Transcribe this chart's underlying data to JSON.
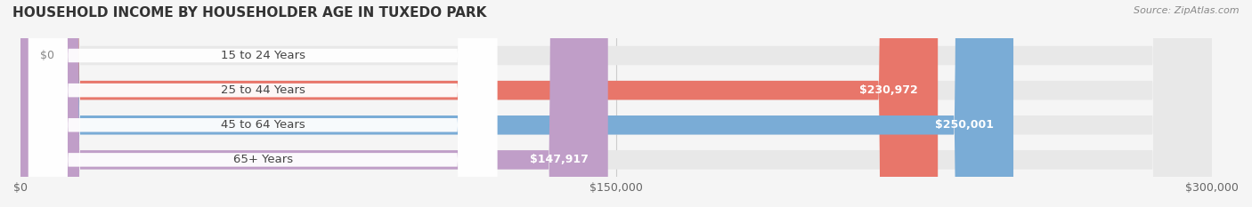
{
  "title": "HOUSEHOLD INCOME BY HOUSEHOLDER AGE IN TUXEDO PARK",
  "source": "Source: ZipAtlas.com",
  "categories": [
    "15 to 24 Years",
    "25 to 44 Years",
    "45 to 64 Years",
    "65+ Years"
  ],
  "values": [
    0,
    230972,
    250001,
    147917
  ],
  "max_value": 300000,
  "bar_colors": [
    "#f5c99a",
    "#e8766a",
    "#7aacd6",
    "#c09ec8"
  ],
  "label_colors": [
    "#d4956a",
    "#e8766a",
    "#7aacd6",
    "#c09ec8"
  ],
  "background_color": "#f5f5f5",
  "bar_bg_color": "#e8e8e8",
  "label_texts": [
    "$0",
    "$230,972",
    "$250,001",
    "$147,917"
  ],
  "x_ticks": [
    0,
    150000,
    300000
  ],
  "x_tick_labels": [
    "$0",
    "$150,000",
    "$300,000"
  ],
  "bar_height": 0.55,
  "fig_width": 14.06,
  "fig_height": 2.33
}
